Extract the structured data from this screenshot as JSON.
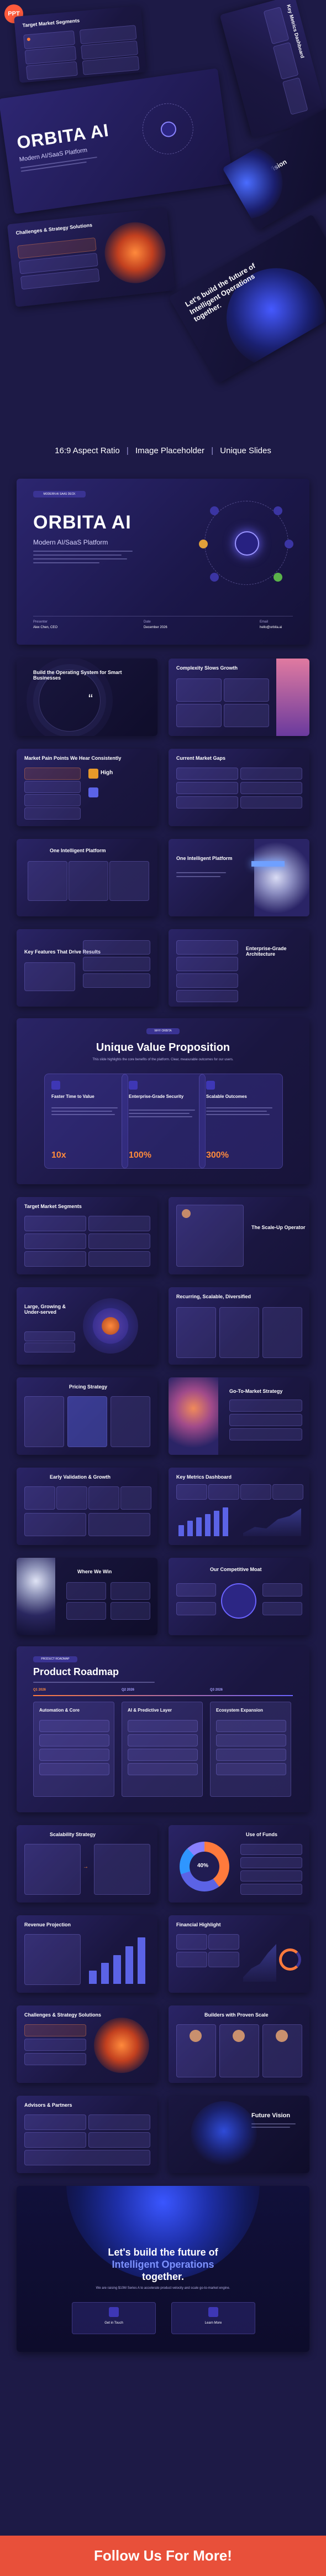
{
  "badge": "PPT",
  "hero": {
    "slide1_title": "Target Market Segments",
    "slide2_title": "Key Metrics Dashboard",
    "main_title": "ORBITA AI",
    "main_subtitle": "Modern AI/SaaS Platform",
    "slide4_title": "Challenges & Strategy Solutions",
    "slide5_title": "Future Vision",
    "slide6_title": "Let's build the future of Intelligent Operations together."
  },
  "features": [
    "16:9 Aspect Ratio",
    "Image Placeholder",
    "Unique Slides"
  ],
  "title_slide": {
    "tag": "MODERN AI SAAS DECK",
    "title": "ORBITA AI",
    "subtitle": "Modern AI/SaaS Platform",
    "presenter_label": "Presenter",
    "presenter": "Alex Chen, CEO",
    "date_label": "Date",
    "date": "December 2026",
    "email_label": "Email",
    "email": "hello@orbita.ai"
  },
  "thumbs": {
    "t1": "Build the Operating System for Smart Businesses",
    "t2": "Complexity Slows Growth",
    "t3": "Market Pain Points We Hear Consistently",
    "t4": "Current Market Gaps",
    "t5": "One Intelligent Platform",
    "t6": "One Intelligent Platform",
    "t7": "Key Features That Drive Results",
    "t8": "Enterprise-Grade Architecture",
    "t9": "Target Market Segments",
    "t10": "The Scale-Up Operator",
    "t11": "Large, Growing & Under-served",
    "t12": "Recurring, Scalable, Diversified",
    "t13": "Pricing Strategy",
    "t14": "Go-To-Market Strategy",
    "t15": "Early Validation & Growth",
    "t16": "Key Metrics Dashboard",
    "t17": "Where We Win",
    "t18": "Our Competitive Moat",
    "t19": "Scalability Strategy",
    "t20": "Use of Funds",
    "t21": "Revenue Projection",
    "t22": "Financial Highlight",
    "t23": "Challenges & Strategy Solutions",
    "t24": "Builders with Proven Scale",
    "t25": "Advisors & Partners",
    "t26": "Future Vision"
  },
  "uvp": {
    "tag": "WHY ORBITA",
    "title": "Unique Value Proposition",
    "desc": "This slide highlights the core benefits of the platform. Clear, measurable outcomes for our users.",
    "cards": [
      {
        "title": "Faster Time to Value",
        "value": "10x"
      },
      {
        "title": "Enterprise-Grade Security",
        "value": "100%"
      },
      {
        "title": "Scalable Outcomes",
        "value": "300%"
      }
    ]
  },
  "roadmap": {
    "tag": "PRODUCT ROADMAP",
    "title": "Product Roadmap",
    "phases": [
      {
        "label": "Q1 2026",
        "title": "Automation & Core"
      },
      {
        "label": "Q2 2026",
        "title": "AI & Predictive Layer"
      },
      {
        "label": "Q3 2026",
        "title": "Ecosystem Expansion"
      }
    ]
  },
  "funds": {
    "pct": "40%"
  },
  "cta": {
    "line1": "Let's build the future of",
    "line2": "Intelligent Operations",
    "line3": "together.",
    "desc": "We are raising $10M Series A to accelerate product velocity and scale go-to-market engine.",
    "btn1": "Get in Touch",
    "btn2": "Learn More"
  },
  "footer": "Follow Us For More!",
  "colors": {
    "accent": "#ff7a3c",
    "brand": "#5b63e6",
    "bg": "#1d1a46",
    "footer": "#e8503a"
  }
}
